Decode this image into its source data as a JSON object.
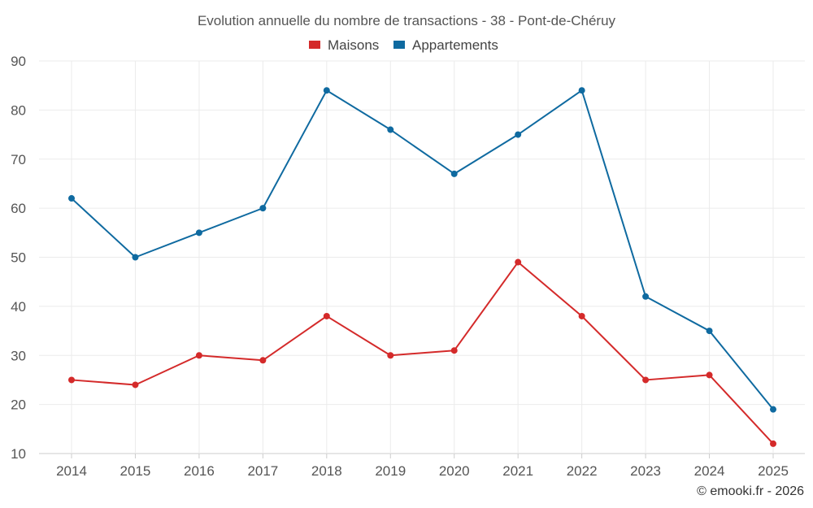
{
  "chart_data": {
    "type": "line",
    "title": "Evolution annuelle du nombre de transactions - 38 - Pont-de-Chéruy",
    "categories": [
      "2014",
      "2015",
      "2016",
      "2017",
      "2018",
      "2019",
      "2020",
      "2021",
      "2022",
      "2023",
      "2024",
      "2025"
    ],
    "series": [
      {
        "name": "Maisons",
        "color": "#d42a2a",
        "values": [
          25,
          24,
          30,
          29,
          38,
          30,
          31,
          49,
          38,
          25,
          26,
          12
        ]
      },
      {
        "name": "Appartements",
        "color": "#0f6aa0",
        "values": [
          62,
          50,
          55,
          60,
          84,
          76,
          67,
          75,
          84,
          42,
          35,
          19
        ]
      }
    ],
    "ylim": [
      10,
      90
    ],
    "yticks": [
      10,
      20,
      30,
      40,
      50,
      60,
      70,
      80,
      90
    ],
    "grid": true,
    "legend_position": "top-center",
    "xlabel": "",
    "ylabel": ""
  },
  "credit": "© emooki.fr - 2026"
}
